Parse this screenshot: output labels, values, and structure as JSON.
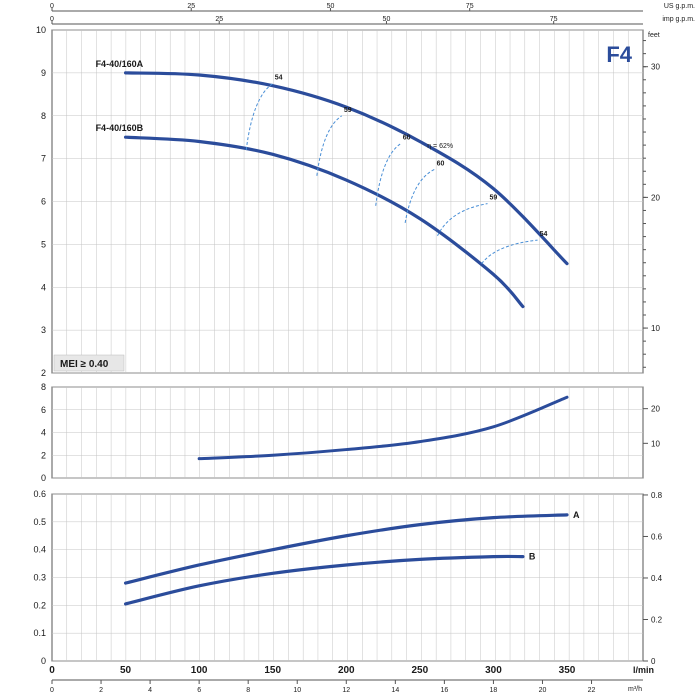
{
  "chart_data": [
    {
      "type": "line",
      "name": "head",
      "title": "F4",
      "badge": "MEI ≥ 0.40",
      "right_axis_unit": "feet",
      "top_scales": [
        {
          "label": "US g.p.m.",
          "ticks": [
            0,
            25,
            50,
            75
          ]
        },
        {
          "label": "imp g.p.m.",
          "ticks": [
            0,
            25,
            50,
            75
          ]
        }
      ],
      "ylim": [
        2,
        10
      ],
      "yticks": [
        2,
        3,
        4,
        5,
        6,
        7,
        8,
        9,
        10
      ],
      "right_ticks": [
        10,
        20,
        30
      ],
      "series": [
        {
          "name": "F4-40/160A",
          "x": [
            50,
            100,
            150,
            200,
            250,
            300,
            350
          ],
          "y": [
            9.0,
            8.95,
            8.7,
            8.2,
            7.4,
            6.3,
            4.55
          ]
        },
        {
          "name": "F4-40/160B",
          "x": [
            50,
            100,
            150,
            200,
            250,
            300,
            320
          ],
          "y": [
            7.5,
            7.4,
            7.1,
            6.5,
            5.6,
            4.3,
            3.55
          ]
        }
      ],
      "efficiency": [
        {
          "label": "54",
          "a_x": 150,
          "a_y": 8.75,
          "b_x": 132,
          "b_y": 7.2
        },
        {
          "label": "59",
          "a_x": 197,
          "a_y": 8.0,
          "b_x": 180,
          "b_y": 6.6
        },
        {
          "label": "60",
          "a_x": 237,
          "a_y": 7.35,
          "b_x": 220,
          "b_y": 5.9
        },
        {
          "label": "60",
          "a_x": 260,
          "a_y": 6.75,
          "b_x": 240,
          "b_y": 5.5
        },
        {
          "label": "59",
          "a_x": 296,
          "a_y": 5.95,
          "b_x": 262,
          "b_y": 5.2
        },
        {
          "label": "54",
          "a_x": 330,
          "a_y": 5.1,
          "b_x": 292,
          "b_y": 4.55
        }
      ],
      "eta_label": "η = 62%"
    },
    {
      "type": "line",
      "name": "npsh",
      "ylim": [
        0,
        8
      ],
      "yticks": [
        0,
        2,
        4,
        6,
        8
      ],
      "right_ticks": [
        10,
        20
      ],
      "series": [
        {
          "x": [
            100,
            150,
            200,
            250,
            300,
            350
          ],
          "y": [
            1.7,
            2.0,
            2.5,
            3.2,
            4.5,
            7.1
          ]
        }
      ]
    },
    {
      "type": "line",
      "name": "power",
      "xlabel": "l/min",
      "xlabel2": "m³/h",
      "ylim": [
        0,
        0.6
      ],
      "yticks": [
        "0",
        "0.1",
        "0.2",
        "0.3",
        "0.4",
        "0.5",
        "0.6"
      ],
      "right_ticks": [
        "0",
        "0.2",
        "0.4",
        "0.6",
        "0.8"
      ],
      "x_ticks_lmin": [
        0,
        50,
        100,
        150,
        200,
        250,
        300,
        350
      ],
      "x_ticks_m3h": [
        0,
        2,
        4,
        6,
        8,
        10,
        12,
        14,
        16,
        18,
        20,
        22
      ],
      "series": [
        {
          "name": "A",
          "x": [
            50,
            100,
            150,
            200,
            250,
            300,
            350
          ],
          "y": [
            0.28,
            0.345,
            0.4,
            0.45,
            0.49,
            0.515,
            0.525
          ]
        },
        {
          "name": "B",
          "x": [
            50,
            100,
            150,
            200,
            250,
            300,
            320
          ],
          "y": [
            0.205,
            0.27,
            0.315,
            0.345,
            0.365,
            0.375,
            0.375
          ]
        }
      ]
    }
  ],
  "colors": {
    "curve": "#2b4c9b",
    "efficiency": "#4a8fd6",
    "grid": "#c4c4c4",
    "frame": "#555555",
    "title": "#2b4c9b",
    "badge_bg": "#e7e7e7"
  }
}
